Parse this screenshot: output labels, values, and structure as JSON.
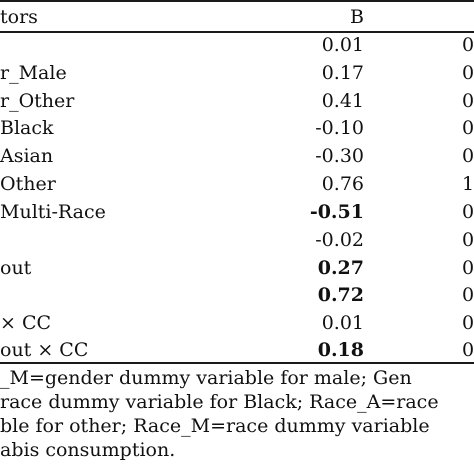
{
  "table": {
    "header": {
      "predictors": "tors",
      "b": "B",
      "col3": ""
    },
    "rows": [
      {
        "label": "",
        "b": "0.01",
        "col3": "0",
        "bold": false
      },
      {
        "label": "r_Male",
        "b": "0.17",
        "col3": "0",
        "bold": false
      },
      {
        "label": "r_Other",
        "b": "0.41",
        "col3": "0",
        "bold": false
      },
      {
        "label": "Black",
        "b": "-0.10",
        "col3": "0",
        "bold": false
      },
      {
        "label": "Asian",
        "b": "-0.30",
        "col3": "0",
        "bold": false
      },
      {
        "label": "Other",
        "b": "0.76",
        "col3": "1",
        "bold": false
      },
      {
        "label": "Multi-Race",
        "b": "-0.51",
        "col3": "0",
        "bold": true
      },
      {
        "label": "",
        "b": "-0.02",
        "col3": "0",
        "bold": false
      },
      {
        "label": "out",
        "b": "0.27",
        "col3": "0",
        "bold": true
      },
      {
        "label": "",
        "b": "0.72",
        "col3": "0",
        "bold": true
      },
      {
        "label": "× CC",
        "b": "0.01",
        "col3": "0",
        "bold": false
      },
      {
        "label": "out × CC",
        "b": "0.18",
        "col3": "0",
        "bold": true
      }
    ]
  },
  "notes": [
    "_M=gender dummy variable for male; Gen",
    "race dummy variable for Black; Race_A=race",
    "ble for other; Race_M=race dummy variable",
    "abis consumption."
  ]
}
